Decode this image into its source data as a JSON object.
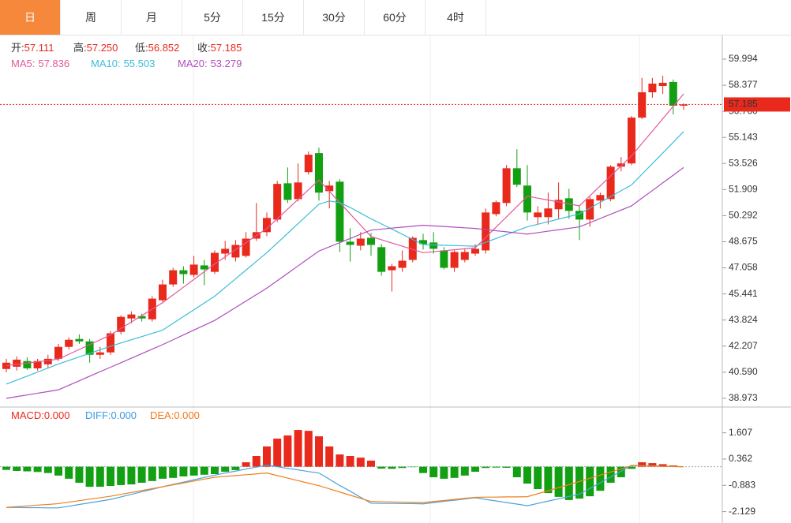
{
  "tabs": [
    "日",
    "周",
    "月",
    "5分",
    "15分",
    "30分",
    "60分",
    "4时"
  ],
  "active_tab": 0,
  "chart_data": [
    {
      "type": "candlestick",
      "info": [
        {
          "name": "开:",
          "value": "57.111"
        },
        {
          "name": "高:",
          "value": "57.250"
        },
        {
          "name": "低:",
          "value": "56.852"
        },
        {
          "name": "收:",
          "value": "57.185"
        }
      ],
      "info_value_color": "#e8291c",
      "up_color": "#e8291c",
      "down_color": "#12a012",
      "open": [
        40.79,
        40.93,
        41.28,
        40.83,
        41.08,
        41.42,
        42.16,
        42.65,
        42.5,
        41.67,
        41.82,
        43.09,
        43.92,
        44.07,
        43.87,
        45.05,
        46.03,
        46.91,
        46.62,
        47.21,
        46.81,
        47.94,
        47.7,
        47.8,
        48.87,
        49.27,
        50.05,
        52.3,
        51.32,
        52.99,
        54.17,
        51.81,
        52.4,
        48.68,
        48.43,
        48.92,
        48.34,
        46.91,
        47.06,
        47.55,
        48.78,
        48.63,
        48.14,
        47.06,
        47.55,
        47.94,
        48.14,
        50.39,
        51.08,
        53.23,
        52.16,
        50.2,
        50.2,
        50.69,
        51.37,
        50.59,
        50.05,
        51.23,
        51.32,
        53.33,
        53.53,
        56.37,
        57.94,
        58.33,
        58.58,
        57.111
      ],
      "high": [
        41.42,
        41.57,
        41.52,
        41.42,
        41.67,
        42.35,
        42.75,
        42.94,
        42.65,
        42.16,
        43.14,
        44.12,
        44.36,
        44.22,
        45.3,
        46.32,
        47.06,
        47.16,
        47.8,
        47.55,
        48.14,
        48.73,
        48.78,
        49.27,
        51.08,
        50.49,
        52.45,
        53.28,
        53.53,
        54.27,
        54.51,
        52.45,
        52.55,
        49.51,
        49.27,
        49.22,
        48.53,
        47.3,
        48.14,
        49.02,
        49.17,
        49.27,
        48.34,
        48.14,
        48.24,
        48.53,
        50.74,
        51.23,
        53.43,
        54.41,
        53.43,
        50.88,
        51.72,
        52.35,
        51.96,
        50.88,
        51.47,
        51.72,
        53.43,
        53.92,
        56.47,
        58.83,
        58.83,
        58.97,
        58.73,
        57.25
      ],
      "low": [
        40.59,
        40.69,
        40.74,
        40.69,
        40.88,
        41.28,
        42.01,
        42.35,
        41.18,
        41.42,
        41.67,
        42.94,
        43.63,
        43.73,
        43.73,
        44.95,
        45.88,
        46.08,
        46.47,
        45.98,
        46.67,
        47.55,
        47.45,
        47.7,
        48.73,
        49.02,
        49.9,
        51.08,
        51.18,
        52.84,
        51.23,
        50.74,
        48.04,
        47.45,
        48.14,
        47.8,
        46.57,
        45.59,
        46.81,
        47.4,
        48.19,
        47.94,
        46.96,
        46.81,
        47.4,
        47.8,
        47.94,
        50.25,
        50.88,
        52.06,
        49.99,
        49.75,
        49.75,
        50.1,
        50.1,
        48.78,
        49.61,
        50.74,
        51.18,
        53.04,
        53.43,
        56.27,
        57.6,
        57.84,
        56.57,
        56.852
      ],
      "close": [
        41.18,
        41.37,
        40.83,
        41.28,
        41.42,
        42.16,
        42.6,
        42.5,
        41.67,
        41.82,
        43.0,
        44.02,
        44.17,
        43.92,
        45.15,
        46.03,
        46.91,
        46.67,
        47.26,
        46.96,
        47.99,
        48.24,
        48.48,
        48.87,
        49.27,
        50.15,
        52.26,
        51.27,
        52.35,
        54.07,
        51.72,
        52.16,
        48.68,
        48.48,
        48.87,
        48.48,
        46.81,
        47.16,
        47.5,
        48.92,
        48.53,
        48.24,
        47.06,
        48.04,
        48.04,
        48.24,
        50.49,
        51.13,
        53.23,
        52.21,
        50.49,
        50.49,
        50.74,
        51.27,
        50.59,
        50.05,
        51.32,
        51.57,
        53.33,
        53.53,
        56.37,
        57.94,
        58.48,
        58.53,
        57.11,
        57.185
      ],
      "series": [
        {
          "name": "MA5:",
          "color": "#e2589c",
          "values": [
            41.0,
            41.08,
            41.16,
            41.24,
            41.32,
            41.4,
            41.7,
            42.0,
            42.3,
            42.6,
            42.9,
            43.3,
            43.7,
            44.1,
            44.5,
            44.9,
            45.38,
            45.86,
            46.34,
            46.82,
            47.3,
            47.74,
            48.18,
            48.62,
            49.06,
            49.5,
            50.1,
            50.7,
            51.3,
            51.9,
            52.5,
            51.8,
            51.1,
            50.4,
            49.7,
            49.0,
            48.8,
            48.6,
            48.4,
            48.2,
            48.0,
            48.06,
            48.12,
            48.18,
            48.24,
            48.3,
            48.94,
            49.58,
            50.22,
            50.86,
            51.5,
            51.38,
            51.26,
            51.14,
            51.02,
            50.9,
            51.52,
            52.14,
            52.76,
            53.38,
            54.0,
            54.77,
            55.53,
            56.3,
            57.07,
            57.836
          ]
        },
        {
          "name": "MA10:",
          "color": "#3cbcd8",
          "values": [
            39.85,
            40.1,
            40.35,
            40.6,
            40.85,
            41.1,
            41.32,
            41.54,
            41.76,
            41.98,
            42.2,
            42.4,
            42.6,
            42.8,
            43.0,
            43.2,
            43.62,
            44.04,
            44.46,
            44.88,
            45.3,
            45.84,
            46.38,
            46.92,
            47.46,
            48.0,
            48.6,
            49.2,
            49.8,
            50.4,
            51.0,
            51.2,
            51.1,
            50.8,
            50.45,
            50.1,
            49.78,
            49.46,
            49.14,
            48.82,
            48.5,
            48.48,
            48.46,
            48.44,
            48.42,
            48.4,
            48.64,
            48.88,
            49.12,
            49.36,
            49.6,
            49.76,
            49.92,
            50.08,
            50.24,
            50.4,
            50.76,
            51.12,
            51.48,
            51.84,
            52.2,
            52.86,
            53.52,
            54.18,
            54.84,
            55.503
          ]
        },
        {
          "name": "MA20:",
          "color": "#b04cbf",
          "values": [
            38.97,
            39.08,
            39.18,
            39.29,
            39.39,
            39.5,
            39.78,
            40.06,
            40.34,
            40.62,
            40.9,
            41.18,
            41.46,
            41.74,
            42.02,
            42.3,
            42.6,
            42.9,
            43.2,
            43.5,
            43.8,
            44.2,
            44.6,
            45.0,
            45.4,
            45.8,
            46.26,
            46.72,
            47.18,
            47.64,
            48.1,
            48.36,
            48.62,
            48.88,
            49.14,
            49.4,
            49.46,
            49.52,
            49.58,
            49.64,
            49.7,
            49.66,
            49.62,
            49.58,
            49.54,
            49.5,
            49.43,
            49.36,
            49.29,
            49.22,
            49.15,
            49.24,
            49.33,
            49.42,
            49.51,
            49.6,
            49.86,
            50.12,
            50.38,
            50.64,
            50.9,
            51.38,
            51.85,
            52.33,
            52.8,
            53.279
          ]
        }
      ],
      "price_line": 57.185,
      "price_line_color": "#e8291c",
      "ylim": [
        38.48,
        61.46
      ],
      "yticks": [
        {
          "value": 38.973,
          "label": "38.973"
        },
        {
          "value": 40.59,
          "label": "40.590"
        },
        {
          "value": 42.207,
          "label": "42.207"
        },
        {
          "value": 43.824,
          "label": "43.824"
        },
        {
          "value": 45.441,
          "label": "45.441"
        },
        {
          "value": 47.058,
          "label": "47.058"
        },
        {
          "value": 48.675,
          "label": "48.675"
        },
        {
          "value": 50.292,
          "label": "50.292"
        },
        {
          "value": 51.909,
          "label": "51.909"
        },
        {
          "value": 53.526,
          "label": "53.526"
        },
        {
          "value": 55.143,
          "label": "55.143"
        },
        {
          "value": 56.76,
          "label": "56.760"
        },
        {
          "value": 58.377,
          "label": "58.377"
        },
        {
          "value": 59.994,
          "label": "59.994"
        }
      ]
    },
    {
      "type": "macd",
      "info": [
        {
          "name": "MACD:",
          "value": "0.000",
          "color": "#e8291c"
        },
        {
          "name": "DIFF:",
          "value": "0.000",
          "color": "#3a9be0"
        },
        {
          "name": "DEA:",
          "value": "0.000",
          "color": "#f07b1c"
        }
      ],
      "up_color": "#e8291c",
      "down_color": "#12a012",
      "values": [
        -0.15,
        -0.2,
        -0.22,
        -0.25,
        -0.3,
        -0.42,
        -0.57,
        -0.76,
        -0.95,
        -0.95,
        -0.91,
        -0.87,
        -0.84,
        -0.76,
        -0.68,
        -0.57,
        -0.53,
        -0.46,
        -0.42,
        -0.38,
        -0.35,
        -0.24,
        -0.16,
        0.21,
        0.51,
        0.96,
        1.33,
        1.48,
        1.74,
        1.7,
        1.44,
        0.96,
        0.58,
        0.51,
        0.43,
        0.29,
        -0.09,
        -0.1,
        -0.06,
        -0.02,
        -0.3,
        -0.5,
        -0.57,
        -0.53,
        -0.42,
        -0.24,
        -0.06,
        -0.04,
        -0.05,
        -0.5,
        -0.8,
        -1.06,
        -1.25,
        -1.43,
        -1.58,
        -1.51,
        -1.4,
        -1.14,
        -0.76,
        -0.5,
        -0.1,
        0.21,
        0.17,
        0.12,
        0.06,
        0
      ],
      "series": [
        {
          "color": "#4aa3df",
          "values": [
            -1.93,
            -1.93,
            -1.94,
            -1.94,
            -1.95,
            -1.95,
            -1.87,
            -1.79,
            -1.71,
            -1.63,
            -1.55,
            -1.43,
            -1.31,
            -1.19,
            -1.07,
            -0.95,
            -0.84,
            -0.73,
            -0.62,
            -0.51,
            -0.4,
            -0.3,
            -0.21,
            -0.11,
            -0.02,
            0.08,
            0.0,
            -0.08,
            -0.15,
            -0.23,
            -0.3,
            -0.59,
            -0.89,
            -1.16,
            -1.45,
            -1.73,
            -1.74,
            -1.74,
            -1.75,
            -1.75,
            -1.76,
            -1.7,
            -1.64,
            -1.59,
            -1.53,
            -1.47,
            -1.55,
            -1.62,
            -1.7,
            -1.77,
            -1.85,
            -1.74,
            -1.63,
            -1.52,
            -1.41,
            -1.3,
            -1.03,
            -0.76,
            -0.49,
            -0.21,
            0.06,
            0.05,
            0.04,
            0.02,
            0.01,
            0.0
          ]
        },
        {
          "color": "#f0801a",
          "values": [
            -1.93,
            -1.89,
            -1.86,
            -1.82,
            -1.79,
            -1.75,
            -1.68,
            -1.61,
            -1.54,
            -1.47,
            -1.4,
            -1.31,
            -1.22,
            -1.13,
            -1.04,
            -0.95,
            -0.86,
            -0.77,
            -0.68,
            -0.59,
            -0.5,
            -0.46,
            -0.42,
            -0.38,
            -0.34,
            -0.3,
            -0.42,
            -0.54,
            -0.66,
            -0.78,
            -0.9,
            -1.05,
            -1.2,
            -1.35,
            -1.5,
            -1.65,
            -1.66,
            -1.67,
            -1.68,
            -1.69,
            -1.7,
            -1.65,
            -1.6,
            -1.55,
            -1.5,
            -1.45,
            -1.44,
            -1.44,
            -1.43,
            -1.43,
            -1.42,
            -1.28,
            -1.14,
            -0.99,
            -0.85,
            -0.7,
            -0.55,
            -0.4,
            -0.25,
            -0.1,
            0.05,
            0.04,
            0.03,
            0.02,
            0.01,
            0.0
          ]
        }
      ],
      "ylim": [
        -2.63,
        2.79
      ],
      "yticks": [
        1.607,
        0.362,
        -0.883,
        -2.129
      ]
    }
  ]
}
